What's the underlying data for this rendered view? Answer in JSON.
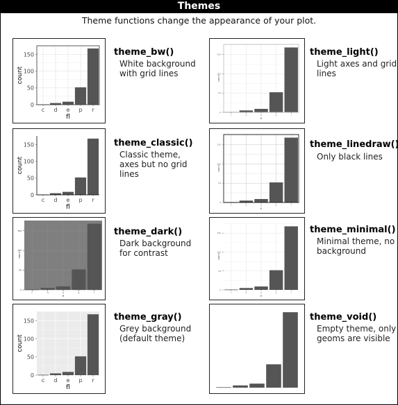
{
  "header": {
    "title": "Themes",
    "subtitle": "Theme functions change the appearance of your plot."
  },
  "colors": {
    "bar": "#555555",
    "bar_dark_theme_text": "#333333",
    "dark_panel": "#7f7f7f",
    "gray_panel": "#ebebeb"
  },
  "themes": [
    {
      "name": "theme_bw()",
      "desc": [
        "White background",
        "with grid lines"
      ]
    },
    {
      "name": "theme_light()",
      "desc": [
        "Light axes and grid",
        "lines"
      ]
    },
    {
      "name": "theme_classic()",
      "desc": [
        "Classic theme,",
        "axes but no grid",
        "lines"
      ]
    },
    {
      "name": "theme_linedraw()",
      "desc": [
        "Only black lines"
      ]
    },
    {
      "name": "theme_dark()",
      "desc": [
        "Dark background",
        "for contrast"
      ]
    },
    {
      "name": "theme_minimal()",
      "desc": [
        "Minimal theme, no",
        "background"
      ]
    },
    {
      "name": "theme_gray()",
      "desc": [
        "Grey background",
        "(default theme)"
      ]
    },
    {
      "name": "theme_void()",
      "desc": [
        "Empty theme, only",
        "geoms are visible"
      ]
    }
  ],
  "chart_data": {
    "type": "bar",
    "categories": [
      "c",
      "d",
      "e",
      "p",
      "r"
    ],
    "values": [
      1,
      5,
      9,
      52,
      168
    ],
    "xlabel": "fl",
    "ylabel": "count",
    "yticks": [
      0,
      50,
      100,
      150
    ],
    "ylim": [
      0,
      176
    ]
  }
}
